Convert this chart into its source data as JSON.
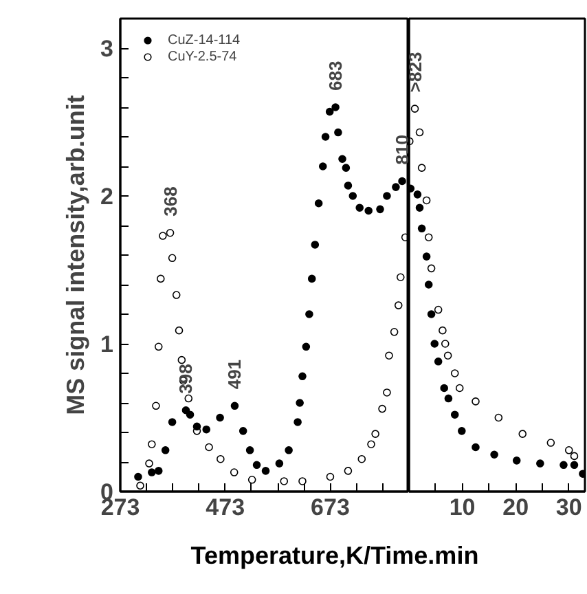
{
  "chart_data": [
    {
      "type": "scatter",
      "ylabel": "MS signal intensity,arb.unit",
      "xlabel": "Temperature,K/Time.min",
      "xlim": [
        273,
        823
      ],
      "ylim": [
        0,
        3.2
      ],
      "xticks": [
        273,
        {
          "value": 323,
          "label": null
        },
        {
          "value": 373,
          "label": null
        },
        {
          "value": 423,
          "label": null
        },
        473,
        {
          "value": 523,
          "label": null
        },
        {
          "value": 573,
          "label": null
        },
        {
          "value": 623,
          "label": null
        },
        673,
        {
          "value": 723,
          "label": null
        },
        {
          "value": 773,
          "label": null
        }
      ],
      "yticks": [
        0,
        {
          "value": 0.2,
          "label": null
        },
        {
          "value": 0.4,
          "label": null
        },
        {
          "value": 0.6,
          "label": null
        },
        {
          "value": 0.8,
          "label": null
        },
        1,
        {
          "value": 1.2,
          "label": null
        },
        {
          "value": 1.4,
          "label": null
        },
        {
          "value": 1.6,
          "label": null
        },
        {
          "value": 1.8,
          "label": null
        },
        2,
        {
          "value": 2.2,
          "label": null
        },
        {
          "value": 2.4,
          "label": null
        },
        {
          "value": 2.6,
          "label": null
        },
        {
          "value": 2.8,
          "label": null
        },
        3
      ],
      "legend": "top left",
      "grid": false,
      "series": [
        {
          "name": "CuZ-14-114",
          "color": "#000000",
          "marker": "circle",
          "x": [
            307,
            333,
            346,
            359,
            372,
            398,
            406,
            419,
            437,
            463,
            491,
            507,
            520,
            533,
            550,
            576,
            594,
            611,
            615,
            620,
            627,
            633,
            638,
            644,
            651,
            659,
            664,
            672,
            683,
            688,
            696,
            703,
            707,
            716,
            729,
            746,
            768,
            781,
            798,
            810
          ],
          "values": [
            0.1,
            0.13,
            0.14,
            0.28,
            0.47,
            0.55,
            0.52,
            0.44,
            0.42,
            0.5,
            0.58,
            0.41,
            0.28,
            0.18,
            0.14,
            0.19,
            0.28,
            0.47,
            0.6,
            0.78,
            0.98,
            1.2,
            1.44,
            1.67,
            1.95,
            2.2,
            2.4,
            2.57,
            2.6,
            2.43,
            2.25,
            2.19,
            2.07,
            2.0,
            1.92,
            1.9,
            1.91,
            2.0,
            2.06,
            2.1
          ]
        },
        {
          "name": "CuY-2.5-74",
          "color": "#000000",
          "marker": "circle_open",
          "x": [
            311,
            328,
            333,
            341,
            346,
            350,
            354,
            368,
            372,
            380,
            385,
            390,
            393,
            403,
            419,
            442,
            464,
            490,
            524,
            585,
            620,
            673,
            707,
            733,
            751,
            759,
            772,
            781,
            785,
            795,
            803,
            807,
            816
          ],
          "values": [
            0.04,
            0.19,
            0.32,
            0.58,
            0.98,
            1.44,
            1.73,
            1.75,
            1.58,
            1.33,
            1.09,
            0.89,
            0.75,
            0.63,
            0.41,
            0.3,
            0.22,
            0.13,
            0.08,
            0.07,
            0.07,
            0.1,
            0.14,
            0.22,
            0.32,
            0.39,
            0.56,
            0.67,
            0.92,
            1.08,
            1.26,
            1.45,
            1.72
          ]
        }
      ],
      "annotations": [
        {
          "text": "368",
          "x": 368,
          "y": 1.75
        },
        {
          "text": "398",
          "x": 398,
          "y": 0.55
        },
        {
          "text": "491",
          "x": 491,
          "y": 0.58
        },
        {
          "text": "683",
          "x": 683,
          "y": 2.6
        },
        {
          "text": "810",
          "x": 810,
          "y": 2.1
        }
      ]
    },
    {
      "type": "scatter",
      "xlim": [
        0,
        33
      ],
      "ylim": [
        0,
        3.2
      ],
      "tick_labels": "x",
      "xticks": [
        {
          "value": 5,
          "label": null
        },
        10,
        {
          "value": 15,
          "label": null
        },
        20,
        {
          "value": 25,
          "label": null
        },
        30
      ],
      "yticks": [
        0,
        1,
        2,
        3
      ],
      "grid": false,
      "series": [
        {
          "color": "#000000",
          "marker": "circle",
          "x": [
            0.3,
            1.6,
            2.0,
            2.4,
            3.3,
            3.7,
            4.2,
            4.8,
            5.5,
            6.6,
            7.4,
            8.6,
            9.9,
            12.5,
            16,
            20.2,
            24.6,
            29,
            31,
            32.6
          ],
          "values": [
            2.05,
            2.01,
            1.92,
            1.78,
            1.59,
            1.4,
            1.2,
            1.0,
            0.88,
            0.7,
            0.63,
            0.52,
            0.41,
            0.3,
            0.25,
            0.21,
            0.19,
            0.18,
            0.18,
            0.12
          ]
        },
        {
          "color": "#000000",
          "marker": "circle_open",
          "x": [
            0.1,
            1.1,
            2.0,
            2.4,
            3.3,
            3.7,
            4.2,
            5.5,
            6.3,
            6.8,
            7.3,
            8.6,
            9.5,
            12.5,
            16.8,
            21.3,
            26.6,
            30,
            31
          ],
          "values": [
            2.37,
            2.59,
            2.43,
            2.19,
            1.97,
            1.72,
            1.51,
            1.23,
            1.09,
            1.0,
            0.92,
            0.8,
            0.7,
            0.61,
            0.5,
            0.39,
            0.33,
            0.28,
            0.24
          ]
        }
      ],
      "annotations": [
        {
          "text": ">823",
          "x": 1.1,
          "y": 2.59
        }
      ]
    }
  ]
}
